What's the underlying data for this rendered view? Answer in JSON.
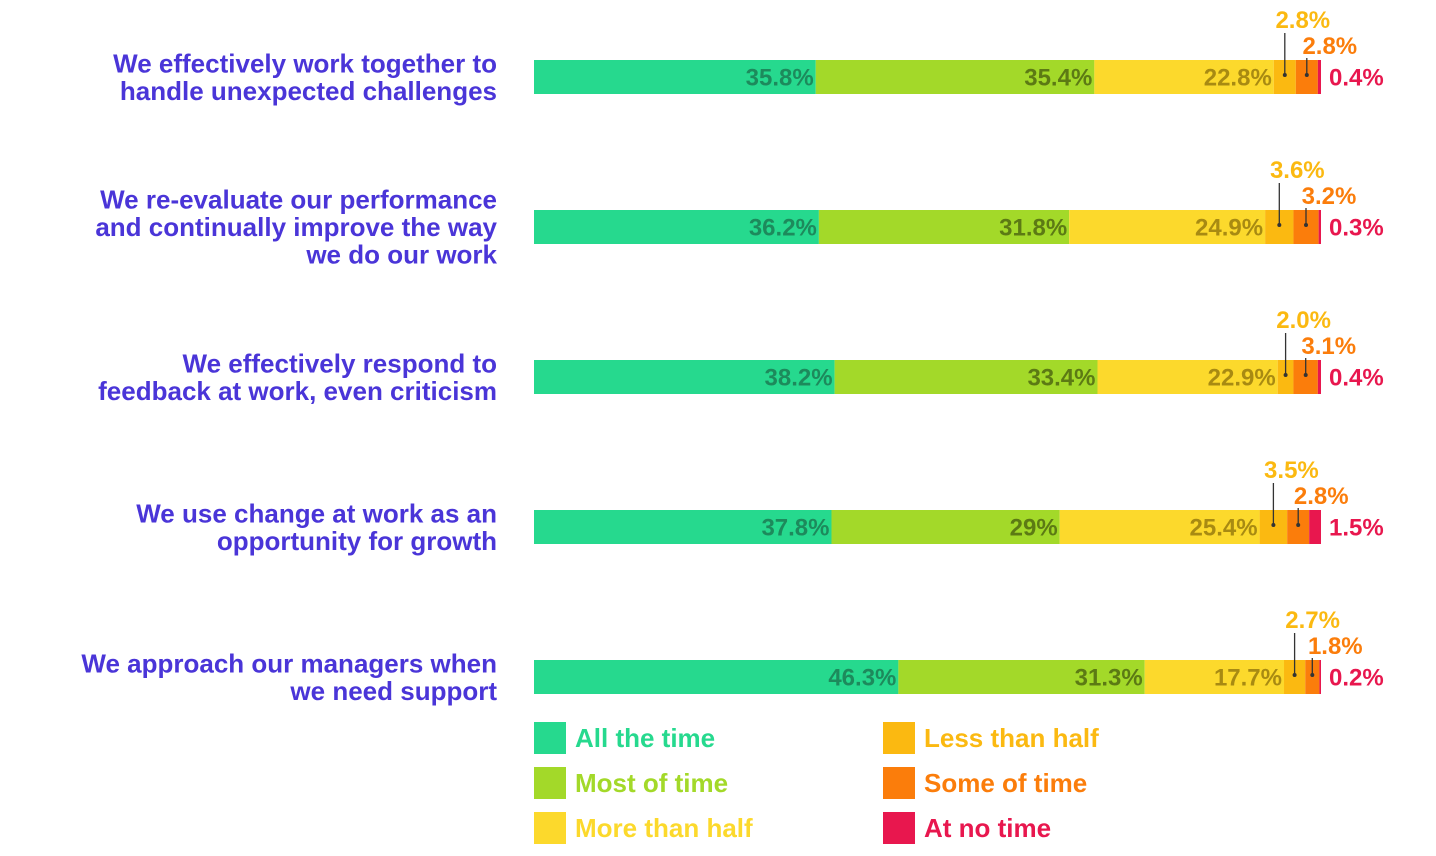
{
  "chart_data": {
    "type": "bar",
    "orientation": "horizontal",
    "stacked": true,
    "unit": "%",
    "categories": [
      [
        "We effectively work together to",
        "handle unexpected challenges"
      ],
      [
        "We re-evaluate our performance",
        "and continually improve the way",
        "we do our work"
      ],
      [
        "We effectively respond to",
        "feedback at work, even criticism"
      ],
      [
        "We use change at work as an",
        "opportunity for growth"
      ],
      [
        "We approach our managers when",
        "we need support"
      ]
    ],
    "series": [
      {
        "name": "All the time",
        "color": "#26d98e",
        "values": [
          35.8,
          36.2,
          38.2,
          37.8,
          46.3
        ],
        "labels": [
          "35.8%",
          "36.2%",
          "38.2%",
          "37.8%",
          "46.3%"
        ]
      },
      {
        "name": "Most of time",
        "color": "#a3d929",
        "values": [
          35.4,
          31.8,
          33.4,
          29.0,
          31.3
        ],
        "labels": [
          "35.4%",
          "31.8%",
          "33.4%",
          "29%",
          "31.3%"
        ]
      },
      {
        "name": "More than half",
        "color": "#fcd92c",
        "values": [
          22.8,
          24.9,
          22.9,
          25.4,
          17.7
        ],
        "labels": [
          "22.8%",
          "24.9%",
          "22.9%",
          "25.4%",
          "17.7%"
        ]
      },
      {
        "name": "Less than half",
        "color": "#fbb911",
        "values": [
          2.8,
          3.6,
          2.0,
          3.5,
          2.7
        ],
        "labels": [
          "2.8%",
          "3.6%",
          "2.0%",
          "3.5%",
          "2.7%"
        ]
      },
      {
        "name": "Some of time",
        "color": "#fb7d0b",
        "values": [
          2.8,
          3.2,
          3.1,
          2.8,
          1.8
        ],
        "labels": [
          "2.8%",
          "3.2%",
          "3.1%",
          "2.8%",
          "1.8%"
        ]
      },
      {
        "name": "At no time",
        "color": "#e8174e",
        "values": [
          0.4,
          0.3,
          0.4,
          1.5,
          0.2
        ],
        "labels": [
          "0.4%",
          "0.3%",
          "0.4%",
          "1.5%",
          "0.2%"
        ]
      }
    ],
    "inside_label_colors": [
      "#1d8a5c",
      "#5c7a14",
      "#a88a12"
    ],
    "question_color": "#4a35d8",
    "legend": {
      "position": "bottom",
      "columns": 2
    }
  }
}
